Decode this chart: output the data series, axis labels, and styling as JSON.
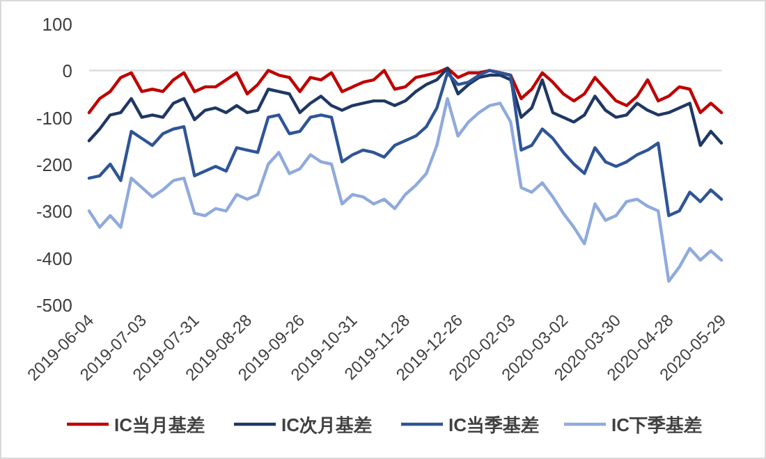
{
  "chart_data": {
    "type": "line",
    "categories": [
      "2019-06-04",
      null,
      null,
      null,
      null,
      "2019-07-03",
      null,
      null,
      null,
      null,
      "2019-07-31",
      null,
      null,
      null,
      null,
      "2019-08-28",
      null,
      null,
      null,
      null,
      "2019-09-26",
      null,
      null,
      null,
      null,
      "2019-10-31",
      null,
      null,
      null,
      null,
      "2019-11-28",
      null,
      null,
      null,
      null,
      "2019-12-26",
      null,
      null,
      null,
      null,
      "2020-02-03",
      null,
      null,
      null,
      null,
      "2020-03-02",
      null,
      null,
      null,
      null,
      "2020-03-30",
      null,
      null,
      null,
      null,
      "2020-04-28",
      null,
      null,
      null,
      null,
      "2020-05-29"
    ],
    "ylim": [
      -500,
      100
    ],
    "yticks": [
      -500,
      -400,
      -300,
      -200,
      -100,
      0,
      100
    ],
    "ref_lines": [
      {
        "axis": "y",
        "value": 0,
        "color": "#d9d9d9"
      }
    ],
    "legend": "bottom",
    "grid": false,
    "series": [
      {
        "name": "IC当月基差",
        "color": "#c00000",
        "values": [
          -90,
          -60,
          -45,
          -15,
          -5,
          -45,
          -40,
          -45,
          -20,
          -5,
          -45,
          -35,
          -35,
          -20,
          -5,
          -50,
          -30,
          0,
          -10,
          -15,
          -45,
          -15,
          -20,
          -5,
          -45,
          -35,
          -25,
          -20,
          0,
          -40,
          -35,
          -15,
          -10,
          -5,
          5,
          -15,
          -5,
          -5,
          0,
          -5,
          -10,
          -60,
          -40,
          -5,
          -25,
          -50,
          -65,
          -50,
          -15,
          -40,
          -65,
          -75,
          -55,
          -20,
          -65,
          -55,
          -35,
          -40,
          -90,
          -70,
          -90
        ]
      },
      {
        "name": "IC次月基差",
        "color": "#1f3864",
        "values": [
          -150,
          -125,
          -95,
          -90,
          -60,
          -100,
          -95,
          -100,
          -70,
          -60,
          -105,
          -85,
          -80,
          -90,
          -75,
          -90,
          -85,
          -40,
          -45,
          -50,
          -90,
          -70,
          -55,
          -75,
          -85,
          -75,
          -70,
          -65,
          -65,
          -75,
          -65,
          -45,
          -30,
          -20,
          5,
          -50,
          -30,
          -15,
          -10,
          -10,
          -20,
          -100,
          -80,
          -20,
          -90,
          -100,
          -110,
          -95,
          -55,
          -85,
          -100,
          -95,
          -70,
          -85,
          -95,
          -90,
          -80,
          -70,
          -160,
          -130,
          -155
        ]
      },
      {
        "name": "IC当季基差",
        "color": "#2f5597",
        "values": [
          -230,
          -225,
          -200,
          -235,
          -130,
          -145,
          -160,
          -135,
          -125,
          -120,
          -225,
          -215,
          -205,
          -215,
          -165,
          -170,
          -175,
          -100,
          -95,
          -135,
          -130,
          -100,
          -95,
          -100,
          -195,
          -180,
          -170,
          -175,
          -185,
          -160,
          -150,
          -140,
          -120,
          -80,
          -5,
          -30,
          -25,
          -10,
          0,
          -5,
          -10,
          -170,
          -160,
          -125,
          -145,
          -175,
          -200,
          -220,
          -165,
          -195,
          -205,
          -195,
          -180,
          -170,
          -155,
          -310,
          -300,
          -260,
          -280,
          -255,
          -275
        ]
      },
      {
        "name": "IC下季基差",
        "color": "#8faadc",
        "values": [
          -300,
          -335,
          -310,
          -335,
          -230,
          -250,
          -270,
          -255,
          -235,
          -230,
          -305,
          -310,
          -295,
          -300,
          -265,
          -275,
          -265,
          -200,
          -175,
          -220,
          -210,
          -180,
          -195,
          -200,
          -285,
          -265,
          -270,
          -285,
          -275,
          -295,
          -265,
          -245,
          -220,
          -160,
          -60,
          -140,
          -110,
          -90,
          -75,
          -70,
          -110,
          -250,
          -260,
          -240,
          -270,
          -305,
          -335,
          -370,
          -285,
          -320,
          -310,
          -280,
          -275,
          -290,
          -300,
          -450,
          -420,
          -380,
          -405,
          -385,
          -405
        ]
      }
    ]
  }
}
